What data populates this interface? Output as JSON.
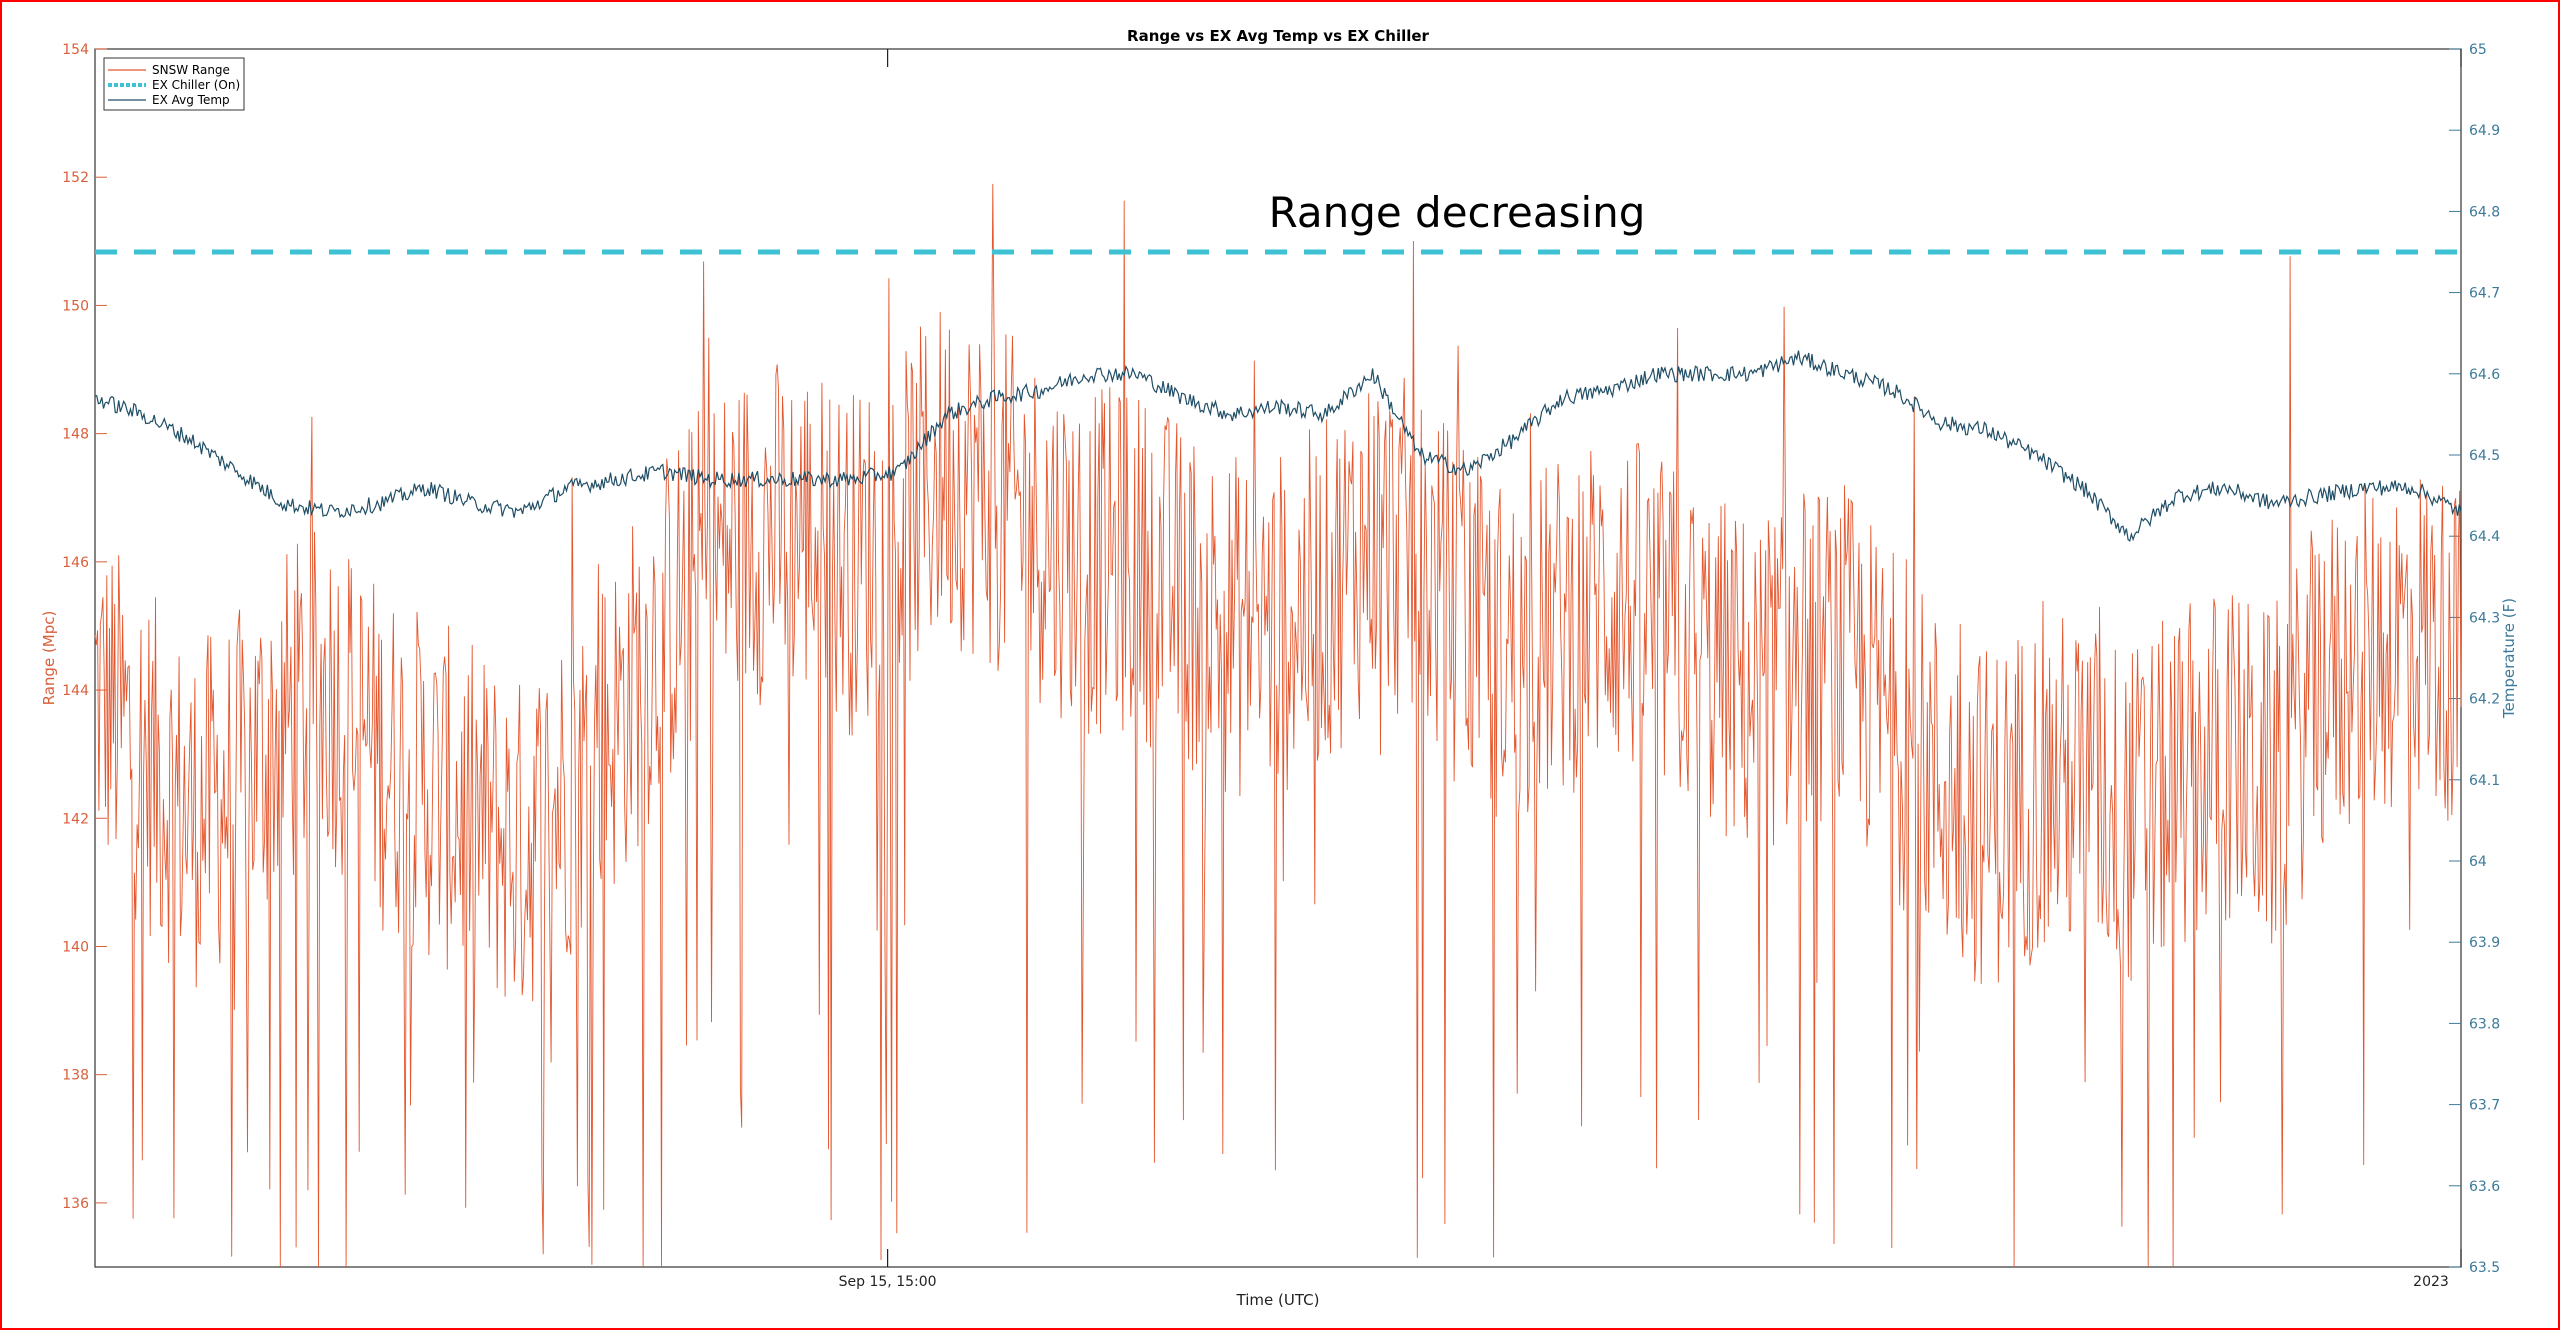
{
  "chart_data": {
    "type": "line",
    "title": "Range vs EX Avg Temp vs EX Chiller",
    "xlabel": "Time (UTC)",
    "ylabel_left": "Range (Mpc)",
    "ylabel_right": "Temperature (F)",
    "ylim_left": [
      135,
      154
    ],
    "ylim_right": [
      63.5,
      65
    ],
    "yticks_left": [
      136,
      138,
      140,
      142,
      144,
      146,
      148,
      150,
      152,
      154
    ],
    "yticks_right": [
      63.5,
      63.6,
      63.7,
      63.8,
      63.9,
      64,
      64.1,
      64.2,
      64.3,
      64.4,
      64.5,
      64.6,
      64.7,
      64.8,
      64.9,
      65
    ],
    "xticks": [
      {
        "x": 0.335,
        "label": "Sep 15, 15:00"
      },
      {
        "x": 1.0,
        "label": "2023"
      }
    ],
    "annotation": {
      "text": "Range decreasing",
      "x": 0.575,
      "y": 151.5
    },
    "legend_placement": "top-left",
    "series": [
      {
        "name": "SNSW Range",
        "axis": "left",
        "color": "#e4572e",
        "x": [
          0,
          0.02,
          0.04,
          0.06,
          0.08,
          0.1,
          0.12,
          0.14,
          0.16,
          0.18,
          0.2,
          0.22,
          0.24,
          0.26,
          0.28,
          0.3,
          0.32,
          0.34,
          0.36,
          0.38,
          0.4,
          0.42,
          0.44,
          0.46,
          0.48,
          0.5,
          0.52,
          0.54,
          0.56,
          0.58,
          0.6,
          0.62,
          0.64,
          0.66,
          0.68,
          0.7,
          0.72,
          0.74,
          0.76,
          0.78,
          0.8,
          0.82,
          0.84,
          0.86,
          0.88,
          0.9,
          0.92,
          0.94,
          0.96,
          0.98,
          1.0
        ],
        "values": [
          144,
          143,
          142,
          142.5,
          143.5,
          144,
          143,
          142.5,
          142,
          141.5,
          142.5,
          143.5,
          145,
          146,
          146.5,
          146.5,
          146,
          146.5,
          147.5,
          147,
          146.5,
          146,
          146,
          145.5,
          145,
          145,
          145.5,
          146.5,
          146,
          145,
          144.5,
          145,
          145.5,
          145,
          144.5,
          144,
          144.5,
          144.5,
          143.5,
          142.5,
          142,
          142.5,
          142.5,
          142,
          142.5,
          143,
          142.5,
          144,
          144.5,
          145,
          144.5
        ]
      },
      {
        "name": "EX Chiller (On)",
        "axis": "right",
        "color": "#3ec1d3",
        "values_constant": 64.75
      },
      {
        "name": "EX Avg Temp",
        "axis": "right",
        "color": "#1f4e66",
        "x": [
          0,
          0.02,
          0.04,
          0.06,
          0.08,
          0.1,
          0.12,
          0.14,
          0.16,
          0.18,
          0.2,
          0.22,
          0.24,
          0.26,
          0.28,
          0.3,
          0.32,
          0.34,
          0.36,
          0.38,
          0.4,
          0.42,
          0.44,
          0.46,
          0.48,
          0.5,
          0.52,
          0.54,
          0.56,
          0.58,
          0.6,
          0.62,
          0.64,
          0.66,
          0.68,
          0.7,
          0.72,
          0.74,
          0.76,
          0.78,
          0.8,
          0.82,
          0.84,
          0.86,
          0.88,
          0.9,
          0.92,
          0.94,
          0.96,
          0.98,
          1.0
        ],
        "values": [
          64.57,
          64.55,
          64.52,
          64.48,
          64.44,
          64.43,
          64.44,
          64.46,
          64.44,
          64.43,
          64.46,
          64.47,
          64.48,
          64.47,
          64.47,
          64.47,
          64.47,
          64.48,
          64.55,
          64.57,
          64.58,
          64.6,
          64.6,
          64.57,
          64.55,
          64.56,
          64.55,
          64.6,
          64.5,
          64.48,
          64.52,
          64.57,
          64.58,
          64.6,
          64.6,
          64.6,
          64.62,
          64.6,
          64.58,
          64.54,
          64.53,
          64.5,
          64.46,
          64.4,
          64.45,
          64.46,
          64.44,
          64.45,
          64.46,
          64.46,
          64.43
        ]
      }
    ]
  }
}
